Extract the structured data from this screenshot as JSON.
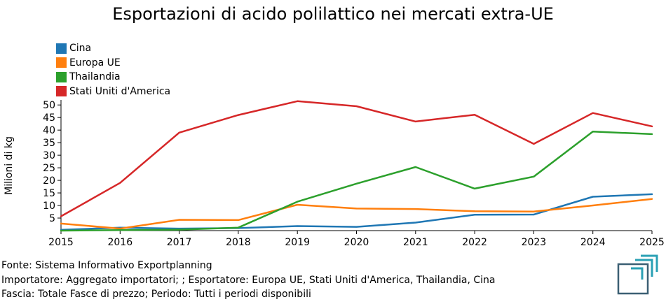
{
  "chart_data": {
    "type": "line",
    "title": "Esportazioni di acido polilattico nei mercati extra-UE",
    "xlabel": "",
    "ylabel": "Milioni di kg",
    "x": [
      2015,
      2016,
      2017,
      2018,
      2019,
      2020,
      2021,
      2022,
      2023,
      2024,
      2025
    ],
    "ylim": [
      0,
      52
    ],
    "yticks": [
      5,
      10,
      15,
      20,
      25,
      30,
      35,
      40,
      45,
      50
    ],
    "legend_position": "top-left",
    "series": [
      {
        "name": "Cina",
        "color": "#1f77b4",
        "values": [
          0.3,
          1.2,
          0.8,
          1.0,
          1.8,
          1.5,
          3.2,
          6.3,
          6.4,
          13.5,
          14.5
        ]
      },
      {
        "name": "Europa UE",
        "color": "#ff7f0e",
        "values": [
          2.8,
          0.8,
          4.3,
          4.2,
          10.3,
          8.8,
          8.6,
          7.7,
          7.6,
          10.0,
          12.6
        ]
      },
      {
        "name": "Thailandia",
        "color": "#2ca02c",
        "values": [
          0.0,
          0.2,
          0.4,
          1.2,
          11.5,
          18.7,
          25.3,
          16.7,
          21.5,
          39.4,
          38.4
        ]
      },
      {
        "name": "Stati Uniti d'America",
        "color": "#d62728",
        "values": [
          5.7,
          19.0,
          39.0,
          46.0,
          51.5,
          49.5,
          43.4,
          46.1,
          34.5,
          46.8,
          41.5
        ]
      }
    ]
  },
  "footer": {
    "line1": "Fonte: Sistema Informativo Exportplanning",
    "line2": "Importatore: Aggregato importatori; ; Esportatore: Europa UE, Stati Uniti d'America, Thailandia, Cina",
    "line3": "Fascia: Totale Fasce di prezzo; Periodo: Tutti i periodi disponibili"
  }
}
